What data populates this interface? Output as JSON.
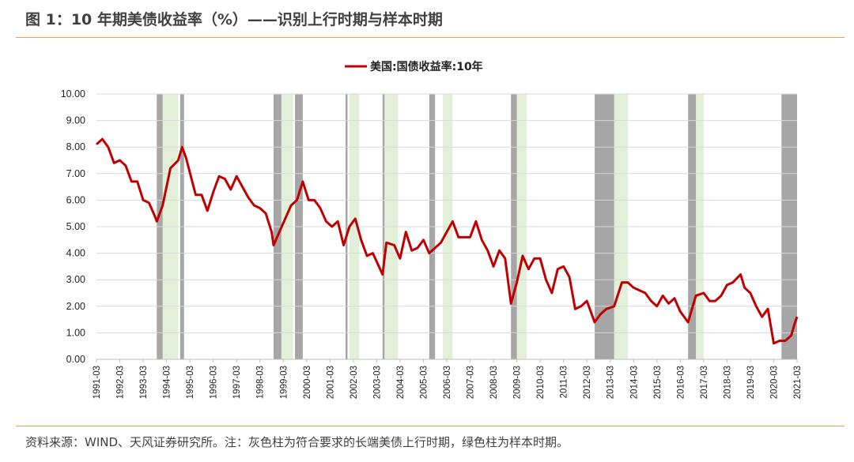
{
  "header": {
    "title": "图 1：10 年期美债收益率（%）——识别上行时期与样本时期"
  },
  "footer": {
    "source": "资料来源：WIND、天风证券研究所。注：灰色柱为符合要求的长端美债上行时期，绿色柱为样本时期。"
  },
  "colors": {
    "series": "#c00000",
    "gray_band": "#a6a6a6",
    "green_band": "#e2efd9",
    "grid": "#d9d9d9",
    "rule": "#e8a24a"
  },
  "chart_data": {
    "type": "line",
    "title": "",
    "xlabel": "",
    "ylabel": "",
    "ylim": [
      0,
      10
    ],
    "xlim": [
      "1991-03",
      "2021-03"
    ],
    "grid": "horizontal",
    "legend": "top-center",
    "y_ticks": [
      "0.00",
      "1.00",
      "2.00",
      "3.00",
      "4.00",
      "5.00",
      "6.00",
      "7.00",
      "8.00",
      "9.00",
      "10.00"
    ],
    "x_ticks": [
      "1991-03",
      "1992-03",
      "1993-03",
      "1994-03",
      "1995-03",
      "1996-03",
      "1997-03",
      "1998-03",
      "1999-03",
      "2000-03",
      "2001-03",
      "2002-03",
      "2003-03",
      "2004-03",
      "2005-03",
      "2006-03",
      "2007-03",
      "2008-03",
      "2009-03",
      "2010-03",
      "2011-03",
      "2012-03",
      "2013-03",
      "2014-03",
      "2015-03",
      "2016-03",
      "2017-03",
      "2018-03",
      "2019-03",
      "2020-03",
      "2021-03"
    ],
    "gray_periods": [
      [
        "1993-10",
        "1994-01"
      ],
      [
        "1994-10",
        "1994-12"
      ],
      [
        "1998-10",
        "1999-02"
      ],
      [
        "1999-09",
        "2000-01"
      ],
      [
        "2001-11",
        "2001-12"
      ],
      [
        "2003-06",
        "2003-07"
      ],
      [
        "2005-06",
        "2005-09"
      ],
      [
        "2008-12",
        "2009-03"
      ],
      [
        "2012-07",
        "2013-05"
      ],
      [
        "2016-07",
        "2016-11"
      ],
      [
        "2020-07",
        "2021-03"
      ]
    ],
    "green_periods": [
      [
        "1994-01",
        "1994-09"
      ],
      [
        "1999-02",
        "1999-08"
      ],
      [
        "2002-01",
        "2002-06"
      ],
      [
        "2003-07",
        "2004-02"
      ],
      [
        "2006-01",
        "2006-06"
      ],
      [
        "2009-03",
        "2009-08"
      ],
      [
        "2013-05",
        "2013-12"
      ],
      [
        "2016-11",
        "2017-03"
      ]
    ],
    "series": [
      {
        "name": "美国:国债收益率:10年",
        "color": "#c00000",
        "points": [
          [
            "1991-03",
            8.1
          ],
          [
            "1991-06",
            8.3
          ],
          [
            "1991-09",
            8.0
          ],
          [
            "1991-12",
            7.4
          ],
          [
            "1992-03",
            7.5
          ],
          [
            "1992-06",
            7.3
          ],
          [
            "1992-09",
            6.7
          ],
          [
            "1992-12",
            6.7
          ],
          [
            "1993-03",
            6.0
          ],
          [
            "1993-06",
            5.9
          ],
          [
            "1993-09",
            5.4
          ],
          [
            "1993-10",
            5.2
          ],
          [
            "1994-01",
            5.8
          ],
          [
            "1994-05",
            7.2
          ],
          [
            "1994-09",
            7.5
          ],
          [
            "1994-11",
            8.0
          ],
          [
            "1995-01",
            7.6
          ],
          [
            "1995-06",
            6.2
          ],
          [
            "1995-09",
            6.2
          ],
          [
            "1995-12",
            5.6
          ],
          [
            "1996-03",
            6.3
          ],
          [
            "1996-06",
            6.9
          ],
          [
            "1996-09",
            6.8
          ],
          [
            "1996-12",
            6.4
          ],
          [
            "1997-03",
            6.9
          ],
          [
            "1997-06",
            6.5
          ],
          [
            "1997-09",
            6.1
          ],
          [
            "1997-12",
            5.8
          ],
          [
            "1998-03",
            5.7
          ],
          [
            "1998-06",
            5.5
          ],
          [
            "1998-09",
            4.8
          ],
          [
            "1998-10",
            4.3
          ],
          [
            "1999-01",
            4.8
          ],
          [
            "1999-04",
            5.3
          ],
          [
            "1999-07",
            5.8
          ],
          [
            "1999-10",
            6.0
          ],
          [
            "2000-01",
            6.7
          ],
          [
            "2000-04",
            6.0
          ],
          [
            "2000-07",
            6.0
          ],
          [
            "2000-10",
            5.7
          ],
          [
            "2001-01",
            5.2
          ],
          [
            "2001-04",
            5.0
          ],
          [
            "2001-07",
            5.2
          ],
          [
            "2001-10",
            4.3
          ],
          [
            "2002-01",
            5.0
          ],
          [
            "2002-04",
            5.3
          ],
          [
            "2002-07",
            4.5
          ],
          [
            "2002-10",
            3.9
          ],
          [
            "2003-01",
            4.0
          ],
          [
            "2003-06",
            3.2
          ],
          [
            "2003-08",
            4.4
          ],
          [
            "2003-12",
            4.3
          ],
          [
            "2004-03",
            3.8
          ],
          [
            "2004-06",
            4.8
          ],
          [
            "2004-09",
            4.1
          ],
          [
            "2004-12",
            4.2
          ],
          [
            "2005-03",
            4.5
          ],
          [
            "2005-06",
            4.0
          ],
          [
            "2005-09",
            4.2
          ],
          [
            "2005-12",
            4.4
          ],
          [
            "2006-03",
            4.8
          ],
          [
            "2006-06",
            5.2
          ],
          [
            "2006-09",
            4.6
          ],
          [
            "2006-12",
            4.6
          ],
          [
            "2007-03",
            4.6
          ],
          [
            "2007-06",
            5.2
          ],
          [
            "2007-09",
            4.5
          ],
          [
            "2007-12",
            4.1
          ],
          [
            "2008-03",
            3.5
          ],
          [
            "2008-06",
            4.1
          ],
          [
            "2008-09",
            3.8
          ],
          [
            "2008-12",
            2.1
          ],
          [
            "2009-03",
            2.9
          ],
          [
            "2009-06",
            3.9
          ],
          [
            "2009-09",
            3.4
          ],
          [
            "2009-12",
            3.8
          ],
          [
            "2010-03",
            3.8
          ],
          [
            "2010-06",
            3.0
          ],
          [
            "2010-09",
            2.5
          ],
          [
            "2010-12",
            3.4
          ],
          [
            "2011-03",
            3.5
          ],
          [
            "2011-06",
            3.1
          ],
          [
            "2011-09",
            1.9
          ],
          [
            "2011-12",
            2.0
          ],
          [
            "2012-03",
            2.2
          ],
          [
            "2012-07",
            1.4
          ],
          [
            "2012-10",
            1.7
          ],
          [
            "2013-01",
            1.9
          ],
          [
            "2013-05",
            2.0
          ],
          [
            "2013-09",
            2.9
          ],
          [
            "2013-12",
            2.9
          ],
          [
            "2014-03",
            2.7
          ],
          [
            "2014-06",
            2.6
          ],
          [
            "2014-09",
            2.5
          ],
          [
            "2014-12",
            2.2
          ],
          [
            "2015-03",
            2.0
          ],
          [
            "2015-06",
            2.4
          ],
          [
            "2015-09",
            2.1
          ],
          [
            "2015-12",
            2.3
          ],
          [
            "2016-03",
            1.8
          ],
          [
            "2016-07",
            1.4
          ],
          [
            "2016-11",
            2.4
          ],
          [
            "2017-03",
            2.5
          ],
          [
            "2017-06",
            2.2
          ],
          [
            "2017-09",
            2.2
          ],
          [
            "2017-12",
            2.4
          ],
          [
            "2018-03",
            2.8
          ],
          [
            "2018-06",
            2.9
          ],
          [
            "2018-10",
            3.2
          ],
          [
            "2018-12",
            2.7
          ],
          [
            "2019-03",
            2.5
          ],
          [
            "2019-06",
            2.0
          ],
          [
            "2019-09",
            1.6
          ],
          [
            "2019-12",
            1.9
          ],
          [
            "2020-03",
            0.6
          ],
          [
            "2020-06",
            0.7
          ],
          [
            "2020-09",
            0.7
          ],
          [
            "2020-12",
            0.9
          ],
          [
            "2021-02",
            1.4
          ],
          [
            "2021-03",
            1.6
          ]
        ]
      }
    ]
  }
}
